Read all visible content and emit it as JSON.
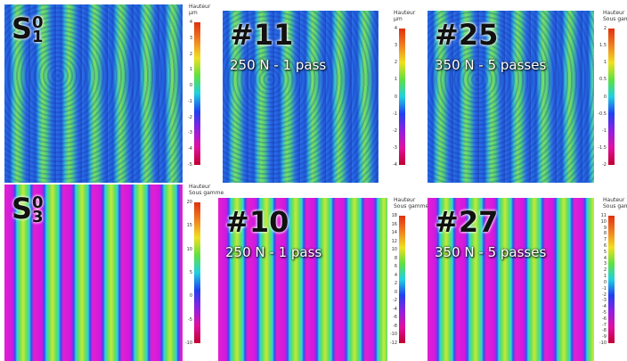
{
  "panels": [
    {
      "label": {
        "base": "S",
        "sup": "0",
        "sub": "1"
      },
      "subtitle": null,
      "colorbar_title": [
        "Hauteur",
        "µm"
      ],
      "ticks": [
        "4",
        "3",
        "2",
        "1",
        "0",
        "-1",
        "-2",
        "-3",
        "-4",
        "-5"
      ]
    },
    {
      "label": {
        "base": "#11"
      },
      "subtitle": "250 N - 1 pass",
      "colorbar_title": [
        "Hauteur",
        "µm"
      ],
      "ticks": [
        "4",
        "3",
        "2",
        "1",
        "0",
        "-1",
        "-2",
        "-3",
        "-4"
      ]
    },
    {
      "label": {
        "base": "#25"
      },
      "subtitle": "350 N - 5 passes",
      "colorbar_title": [
        "Hauteur",
        "Sous gamme"
      ],
      "ticks": [
        "2",
        "1.5",
        "1",
        "0.5",
        "0",
        "-0.5",
        "-1",
        "-1.5",
        "-2"
      ]
    },
    {
      "label": {
        "base": "S",
        "sup": "0",
        "sub": "3"
      },
      "subtitle": null,
      "colorbar_title": [
        "Hauteur",
        "Sous gamme"
      ],
      "ticks": [
        "20",
        "15",
        "10",
        "5",
        "0",
        "-5",
        "-10"
      ]
    },
    {
      "label": {
        "base": "#10"
      },
      "subtitle": "250 N - 1 pass",
      "colorbar_title": [
        "Hauteur",
        "Sous gamme"
      ],
      "ticks": [
        "18",
        "16",
        "14",
        "12",
        "10",
        "8",
        "6",
        "4",
        "2",
        "0",
        "-2",
        "-4",
        "-6",
        "-8",
        "-10",
        "-12"
      ]
    },
    {
      "label": {
        "base": "#27"
      },
      "subtitle": "350 N - 5 passes",
      "colorbar_title": [
        "Hauteur",
        "Sous gamme"
      ],
      "ticks": [
        "11",
        "10",
        "9",
        "8",
        "7",
        "6",
        "5",
        "4",
        "3",
        "2",
        "1",
        "0",
        "-1",
        "-2",
        "-3",
        "-4",
        "-5",
        "-6",
        "-7",
        "-8",
        "-9",
        "-10"
      ]
    }
  ]
}
